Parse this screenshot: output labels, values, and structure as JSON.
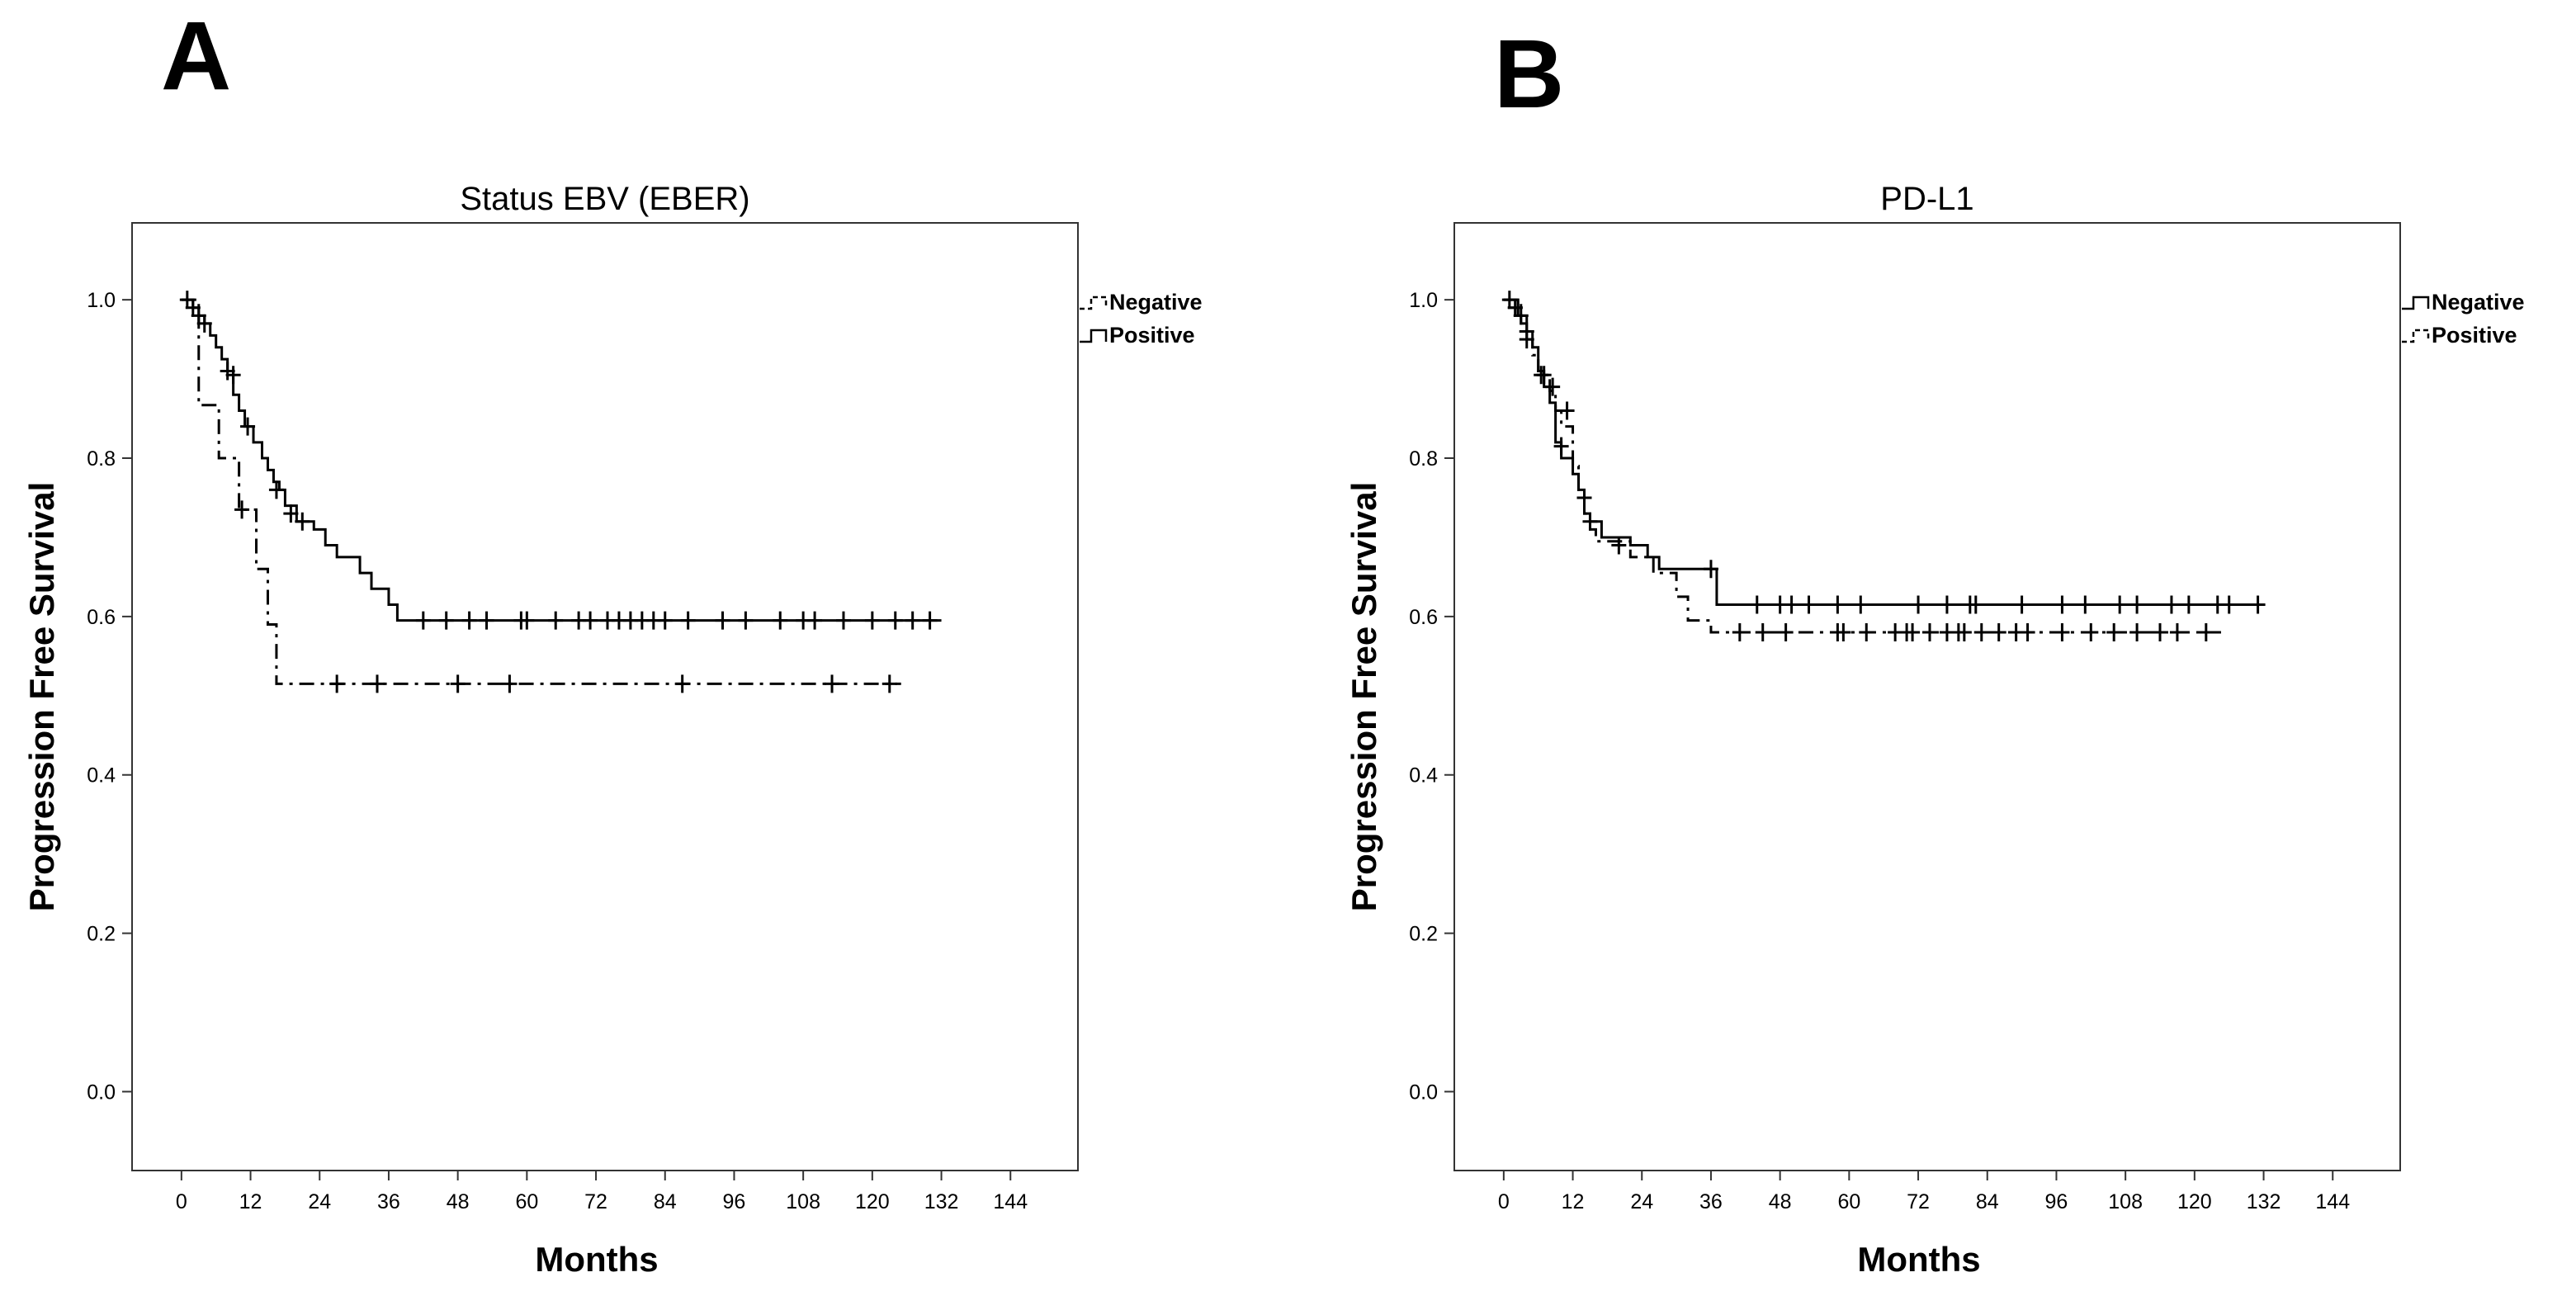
{
  "figure": {
    "panels": [
      "A",
      "B"
    ]
  },
  "chart_data": [
    {
      "type": "line",
      "subtype": "kaplan-meier",
      "panel": "A",
      "title": "Status EBV (EBER)",
      "xlabel": "Months",
      "ylabel": "Progression Free Survival",
      "xlim": [
        -6,
        154
      ],
      "ylim": [
        -0.06,
        1.07
      ],
      "xticks": [
        0,
        12,
        24,
        36,
        48,
        60,
        72,
        84,
        96,
        108,
        120,
        132,
        144
      ],
      "yticks": [
        "0.0",
        "0.2",
        "0.4",
        "0.6",
        "0.8",
        "1.0"
      ],
      "legend_position": "right",
      "series": [
        {
          "name": "Negative",
          "style": "dash-dot",
          "steps": [
            [
              0,
              1.0
            ],
            [
              3,
              0.867
            ],
            [
              6.5,
              0.8
            ],
            [
              10,
              0.735
            ],
            [
              13,
              0.66
            ],
            [
              15,
              0.59
            ],
            [
              16.5,
              0.515
            ],
            [
              125,
              0.515
            ]
          ],
          "censored": [
            [
              10.5,
              0.735
            ],
            [
              27,
              0.515
            ],
            [
              34,
              0.515
            ],
            [
              48,
              0.515
            ],
            [
              57,
              0.515
            ],
            [
              87,
              0.515
            ],
            [
              113,
              0.515
            ],
            [
              123,
              0.515
            ]
          ]
        },
        {
          "name": "Positive",
          "style": "solid",
          "steps": [
            [
              0,
              1.0
            ],
            [
              2,
              0.99
            ],
            [
              3,
              0.98
            ],
            [
              4,
              0.97
            ],
            [
              5,
              0.955
            ],
            [
              6,
              0.94
            ],
            [
              7,
              0.925
            ],
            [
              8,
              0.91
            ],
            [
              9,
              0.88
            ],
            [
              10,
              0.86
            ],
            [
              11,
              0.84
            ],
            [
              12.5,
              0.82
            ],
            [
              14,
              0.8
            ],
            [
              15,
              0.785
            ],
            [
              16,
              0.77
            ],
            [
              17,
              0.76
            ],
            [
              18,
              0.74
            ],
            [
              20,
              0.72
            ],
            [
              23,
              0.71
            ],
            [
              25,
              0.69
            ],
            [
              27,
              0.675
            ],
            [
              31,
              0.655
            ],
            [
              33,
              0.635
            ],
            [
              36,
              0.615
            ],
            [
              37.5,
              0.595
            ],
            [
              132,
              0.595
            ]
          ],
          "censored": [
            [
              1,
              1.0
            ],
            [
              2,
              0.99
            ],
            [
              3,
              0.98
            ],
            [
              4,
              0.97
            ],
            [
              8,
              0.91
            ],
            [
              9,
              0.905
            ],
            [
              11.5,
              0.84
            ],
            [
              16.5,
              0.76
            ],
            [
              19,
              0.73
            ],
            [
              21,
              0.72
            ],
            [
              42,
              0.595
            ],
            [
              46,
              0.595
            ],
            [
              50,
              0.595
            ],
            [
              53,
              0.595
            ],
            [
              59,
              0.595
            ],
            [
              60,
              0.595
            ],
            [
              65,
              0.595
            ],
            [
              69,
              0.595
            ],
            [
              71,
              0.595
            ],
            [
              74,
              0.595
            ],
            [
              76,
              0.595
            ],
            [
              78,
              0.595
            ],
            [
              80,
              0.595
            ],
            [
              82,
              0.595
            ],
            [
              84,
              0.595
            ],
            [
              88,
              0.595
            ],
            [
              94,
              0.595
            ],
            [
              98,
              0.595
            ],
            [
              104,
              0.595
            ],
            [
              108,
              0.595
            ],
            [
              110,
              0.595
            ],
            [
              115,
              0.595
            ],
            [
              120,
              0.595
            ],
            [
              124,
              0.595
            ],
            [
              127,
              0.595
            ],
            [
              130,
              0.595
            ]
          ]
        }
      ]
    },
    {
      "type": "line",
      "subtype": "kaplan-meier",
      "panel": "B",
      "title": "PD-L1",
      "xlabel": "Months",
      "ylabel": "Progression Free Survival",
      "xlim": [
        -6,
        154
      ],
      "ylim": [
        -0.06,
        1.07
      ],
      "xticks": [
        0,
        12,
        24,
        36,
        48,
        60,
        72,
        84,
        96,
        108,
        120,
        132,
        144
      ],
      "yticks": [
        "0.0",
        "0.2",
        "0.4",
        "0.6",
        "0.8",
        "1.0"
      ],
      "legend_position": "right",
      "series": [
        {
          "name": "Negative",
          "style": "solid",
          "steps": [
            [
              0,
              1.0
            ],
            [
              2.5,
              0.98
            ],
            [
              4,
              0.96
            ],
            [
              5,
              0.94
            ],
            [
              6,
              0.91
            ],
            [
              7,
              0.89
            ],
            [
              8,
              0.87
            ],
            [
              9,
              0.82
            ],
            [
              10,
              0.8
            ],
            [
              12,
              0.78
            ],
            [
              13,
              0.76
            ],
            [
              14,
              0.73
            ],
            [
              15,
              0.72
            ],
            [
              17,
              0.7
            ],
            [
              22,
              0.69
            ],
            [
              25,
              0.675
            ],
            [
              27,
              0.66
            ],
            [
              35,
              0.66
            ],
            [
              37,
              0.615
            ],
            [
              131,
              0.615
            ]
          ],
          "censored": [
            [
              1,
              1.0
            ],
            [
              2,
              0.99
            ],
            [
              3,
              0.98
            ],
            [
              4,
              0.96
            ],
            [
              7,
              0.905
            ],
            [
              10,
              0.815
            ],
            [
              14,
              0.75
            ],
            [
              20,
              0.69
            ],
            [
              36,
              0.66
            ],
            [
              44,
              0.615
            ],
            [
              48,
              0.615
            ],
            [
              50,
              0.615
            ],
            [
              53,
              0.615
            ],
            [
              58,
              0.615
            ],
            [
              62,
              0.615
            ],
            [
              72,
              0.615
            ],
            [
              77,
              0.615
            ],
            [
              81,
              0.615
            ],
            [
              82,
              0.615
            ],
            [
              90,
              0.615
            ],
            [
              97,
              0.615
            ],
            [
              101,
              0.615
            ],
            [
              107,
              0.615
            ],
            [
              110,
              0.615
            ],
            [
              116,
              0.615
            ],
            [
              119,
              0.615
            ],
            [
              124,
              0.615
            ],
            [
              126,
              0.615
            ],
            [
              131,
              0.615
            ]
          ]
        },
        {
          "name": "Positive",
          "style": "dash-dot",
          "steps": [
            [
              0,
              1.0
            ],
            [
              3,
              0.97
            ],
            [
              4,
              0.95
            ],
            [
              5,
              0.93
            ],
            [
              6,
              0.91
            ],
            [
              7,
              0.9
            ],
            [
              8,
              0.885
            ],
            [
              9,
              0.86
            ],
            [
              10,
              0.84
            ],
            [
              12,
              0.79
            ],
            [
              13,
              0.76
            ],
            [
              14,
              0.73
            ],
            [
              15,
              0.71
            ],
            [
              16,
              0.695
            ],
            [
              22,
              0.675
            ],
            [
              26,
              0.655
            ],
            [
              30,
              0.625
            ],
            [
              32,
              0.595
            ],
            [
              36,
              0.58
            ],
            [
              125,
              0.58
            ]
          ],
          "censored": [
            [
              2,
              0.99
            ],
            [
              4,
              0.95
            ],
            [
              6.5,
              0.905
            ],
            [
              8.5,
              0.89
            ],
            [
              11,
              0.86
            ],
            [
              15,
              0.72
            ],
            [
              41,
              0.58
            ],
            [
              45,
              0.58
            ],
            [
              49,
              0.58
            ],
            [
              58,
              0.58
            ],
            [
              59,
              0.58
            ],
            [
              63,
              0.58
            ],
            [
              68,
              0.58
            ],
            [
              70,
              0.58
            ],
            [
              71,
              0.58
            ],
            [
              74,
              0.58
            ],
            [
              77,
              0.58
            ],
            [
              79,
              0.58
            ],
            [
              80,
              0.58
            ],
            [
              83,
              0.58
            ],
            [
              86,
              0.58
            ],
            [
              89,
              0.58
            ],
            [
              91,
              0.58
            ],
            [
              97,
              0.58
            ],
            [
              102,
              0.58
            ],
            [
              106,
              0.58
            ],
            [
              110,
              0.58
            ],
            [
              114,
              0.58
            ],
            [
              117,
              0.58
            ],
            [
              122,
              0.58
            ]
          ]
        }
      ]
    }
  ]
}
